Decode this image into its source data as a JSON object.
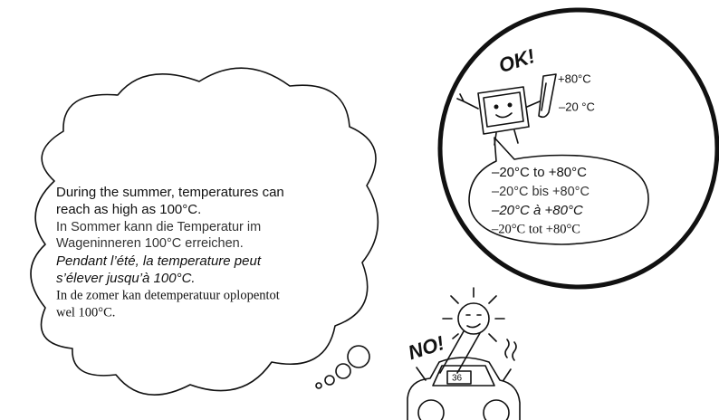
{
  "cloud": {
    "english": [
      "During the summer, temperatures can",
      "reach as high as 100°C."
    ],
    "german": [
      "In Sommer kann die Temperatur im",
      "Wageninneren 100°C erreichen."
    ],
    "french": [
      "Pendant l’été, la temperature peut",
      "s’élever jusqu’à 100°C."
    ],
    "dutch": [
      "In de zomer kan detemperatuur oplopentot",
      "wel 100°C."
    ]
  },
  "ok_scene": {
    "exclamation": "OK!",
    "max_temp": "+80°C",
    "min_temp": "–20 °C",
    "bubble": [
      "–20°C to +80°C",
      "–20°C bis +80°C",
      "–20°C à +80°C",
      "–20°C tot +80°C"
    ]
  },
  "no_scene": {
    "exclamation": "NO!",
    "display": "36"
  }
}
